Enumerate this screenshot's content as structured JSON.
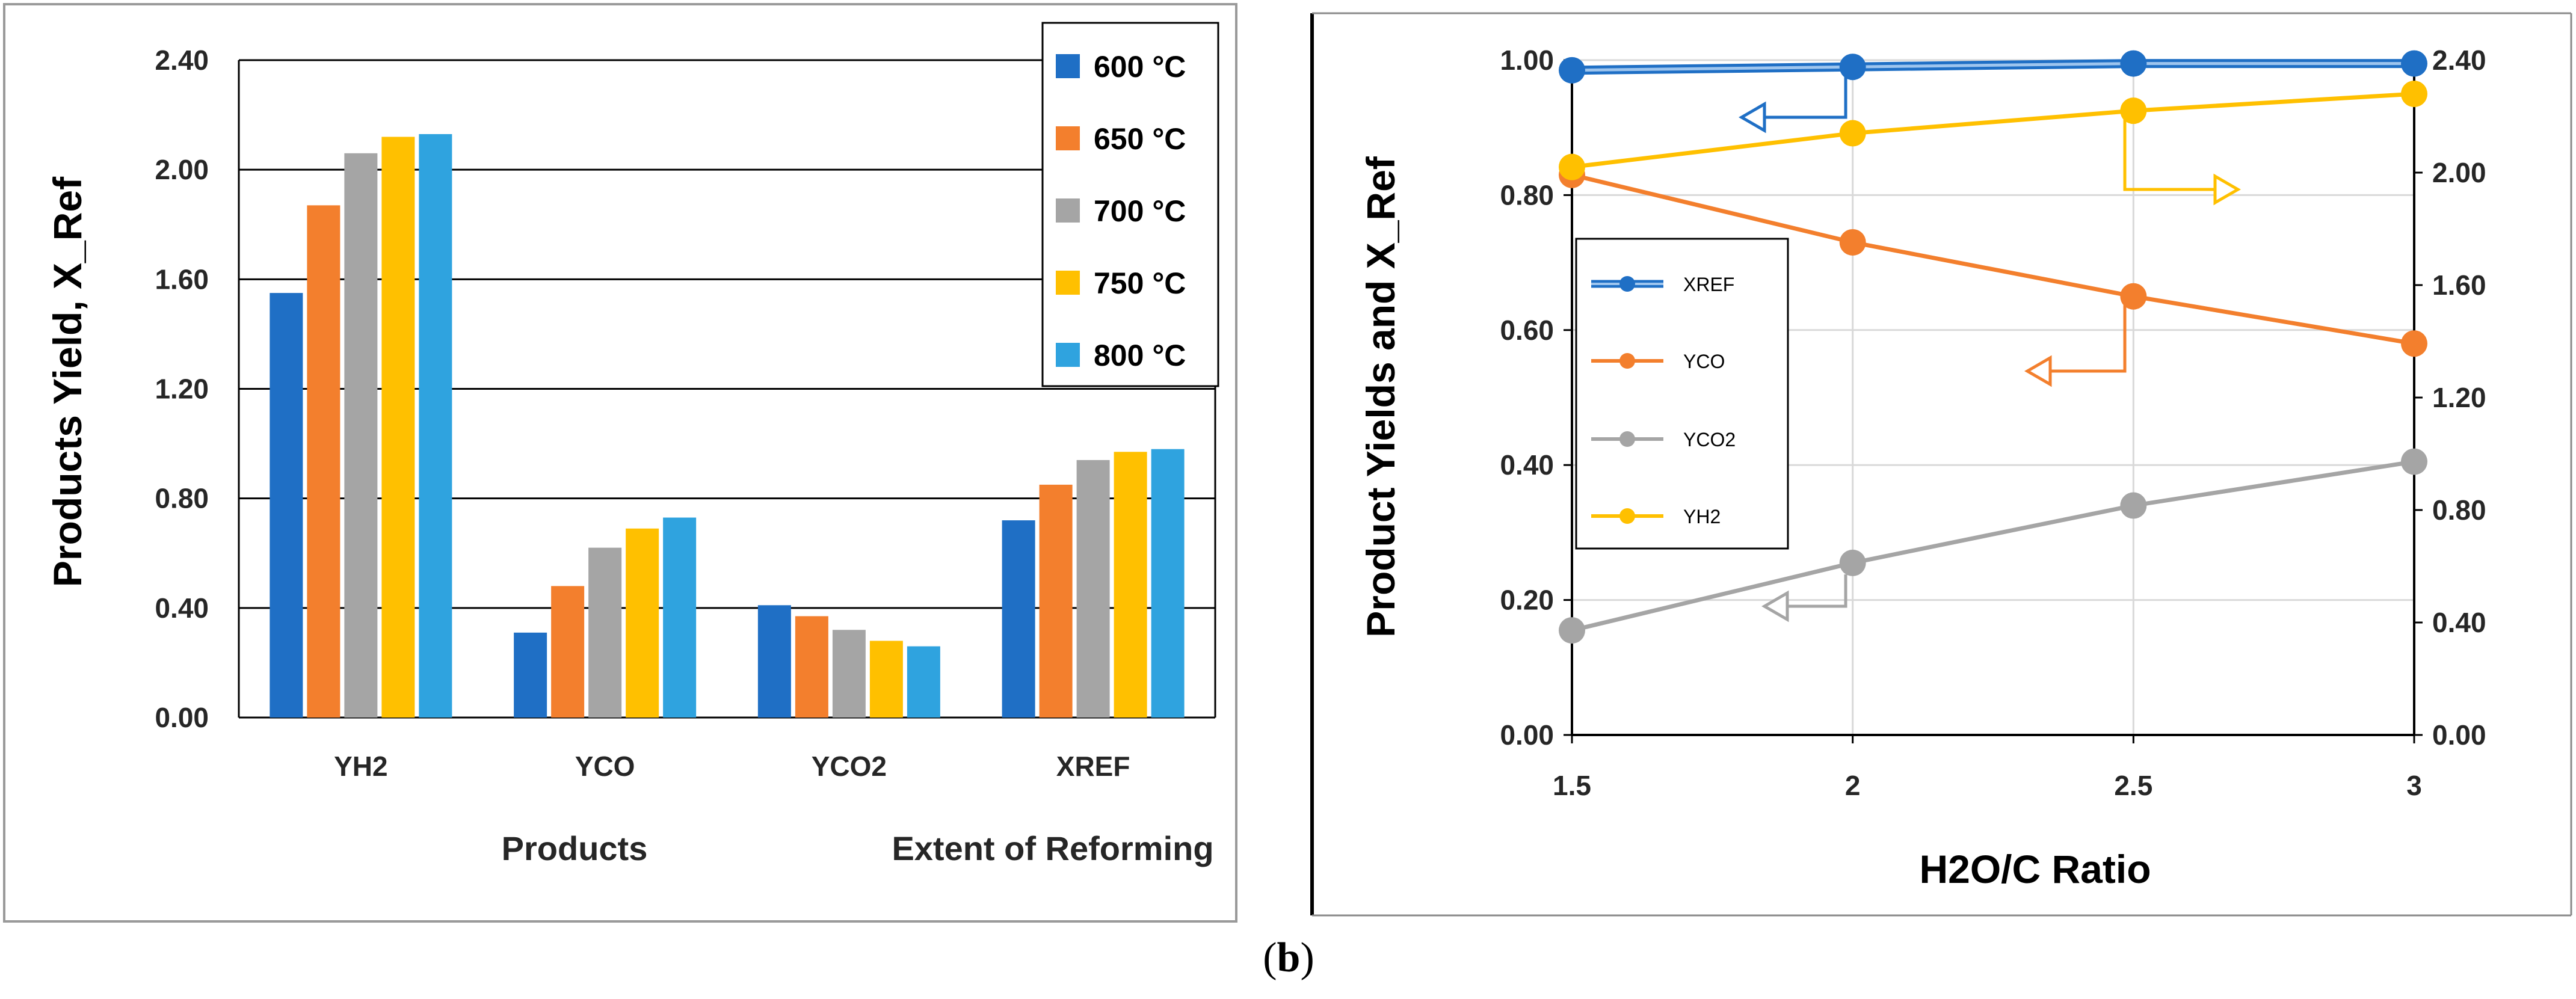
{
  "caption": {
    "open": "(",
    "letter": "b",
    "close": ")"
  },
  "chart_data": [
    {
      "type": "bar",
      "ylabel": "Products Yield, X_Ref",
      "ylim": [
        0,
        2.4
      ],
      "yticks": [
        "0.00",
        "0.40",
        "0.80",
        "1.20",
        "1.60",
        "2.00",
        "2.40"
      ],
      "categories": [
        "YH2",
        "YCO",
        "YCO2",
        "XREF"
      ],
      "xlabels": [
        "Products",
        "Extent of Reforming"
      ],
      "legend_position": "top-right",
      "series": [
        {
          "name": "600 °C",
          "color": "#1f6fc5",
          "values": [
            1.55,
            0.31,
            0.41,
            0.72
          ]
        },
        {
          "name": "650 °C",
          "color": "#f37f2d",
          "values": [
            1.87,
            0.48,
            0.37,
            0.85
          ]
        },
        {
          "name": "700 °C",
          "color": "#a5a5a5",
          "values": [
            2.06,
            0.62,
            0.32,
            0.94
          ]
        },
        {
          "name": "750 °C",
          "color": "#ffc000",
          "values": [
            2.12,
            0.69,
            0.28,
            0.97
          ]
        },
        {
          "name": "800 °C",
          "color": "#2fa3df",
          "values": [
            2.13,
            0.73,
            0.26,
            0.98
          ]
        }
      ]
    },
    {
      "type": "line",
      "xlabel": "H2O/C Ratio",
      "ylabel": "Product Yields and X_Ref",
      "x": [
        1.5,
        2,
        2.5,
        3
      ],
      "xticks": [
        "1.5",
        "2",
        "2.5",
        "3"
      ],
      "xlim": [
        1.5,
        3
      ],
      "ylim": [
        0,
        1
      ],
      "yticks": [
        "0.00",
        "0.20",
        "0.40",
        "0.60",
        "0.80",
        "1.00"
      ],
      "y2lim": [
        0,
        2.4
      ],
      "y2ticks": [
        "0.00",
        "0.40",
        "0.80",
        "1.20",
        "1.60",
        "2.00",
        "2.40"
      ],
      "legend_position": "left",
      "series": [
        {
          "name": "XREF",
          "axis": "left",
          "color": "#1f6fc5",
          "values": [
            0.985,
            0.99,
            0.995,
            0.995
          ]
        },
        {
          "name": "YCO",
          "axis": "left",
          "color": "#f37f2d",
          "values": [
            0.83,
            0.73,
            0.65,
            0.58
          ]
        },
        {
          "name": "YCO2",
          "axis": "left",
          "color": "#a5a5a5",
          "values": [
            0.155,
            0.255,
            0.34,
            0.405
          ]
        },
        {
          "name": "YH2",
          "axis": "right",
          "color": "#ffc000",
          "values": [
            2.02,
            2.14,
            2.22,
            2.28
          ]
        }
      ]
    }
  ]
}
